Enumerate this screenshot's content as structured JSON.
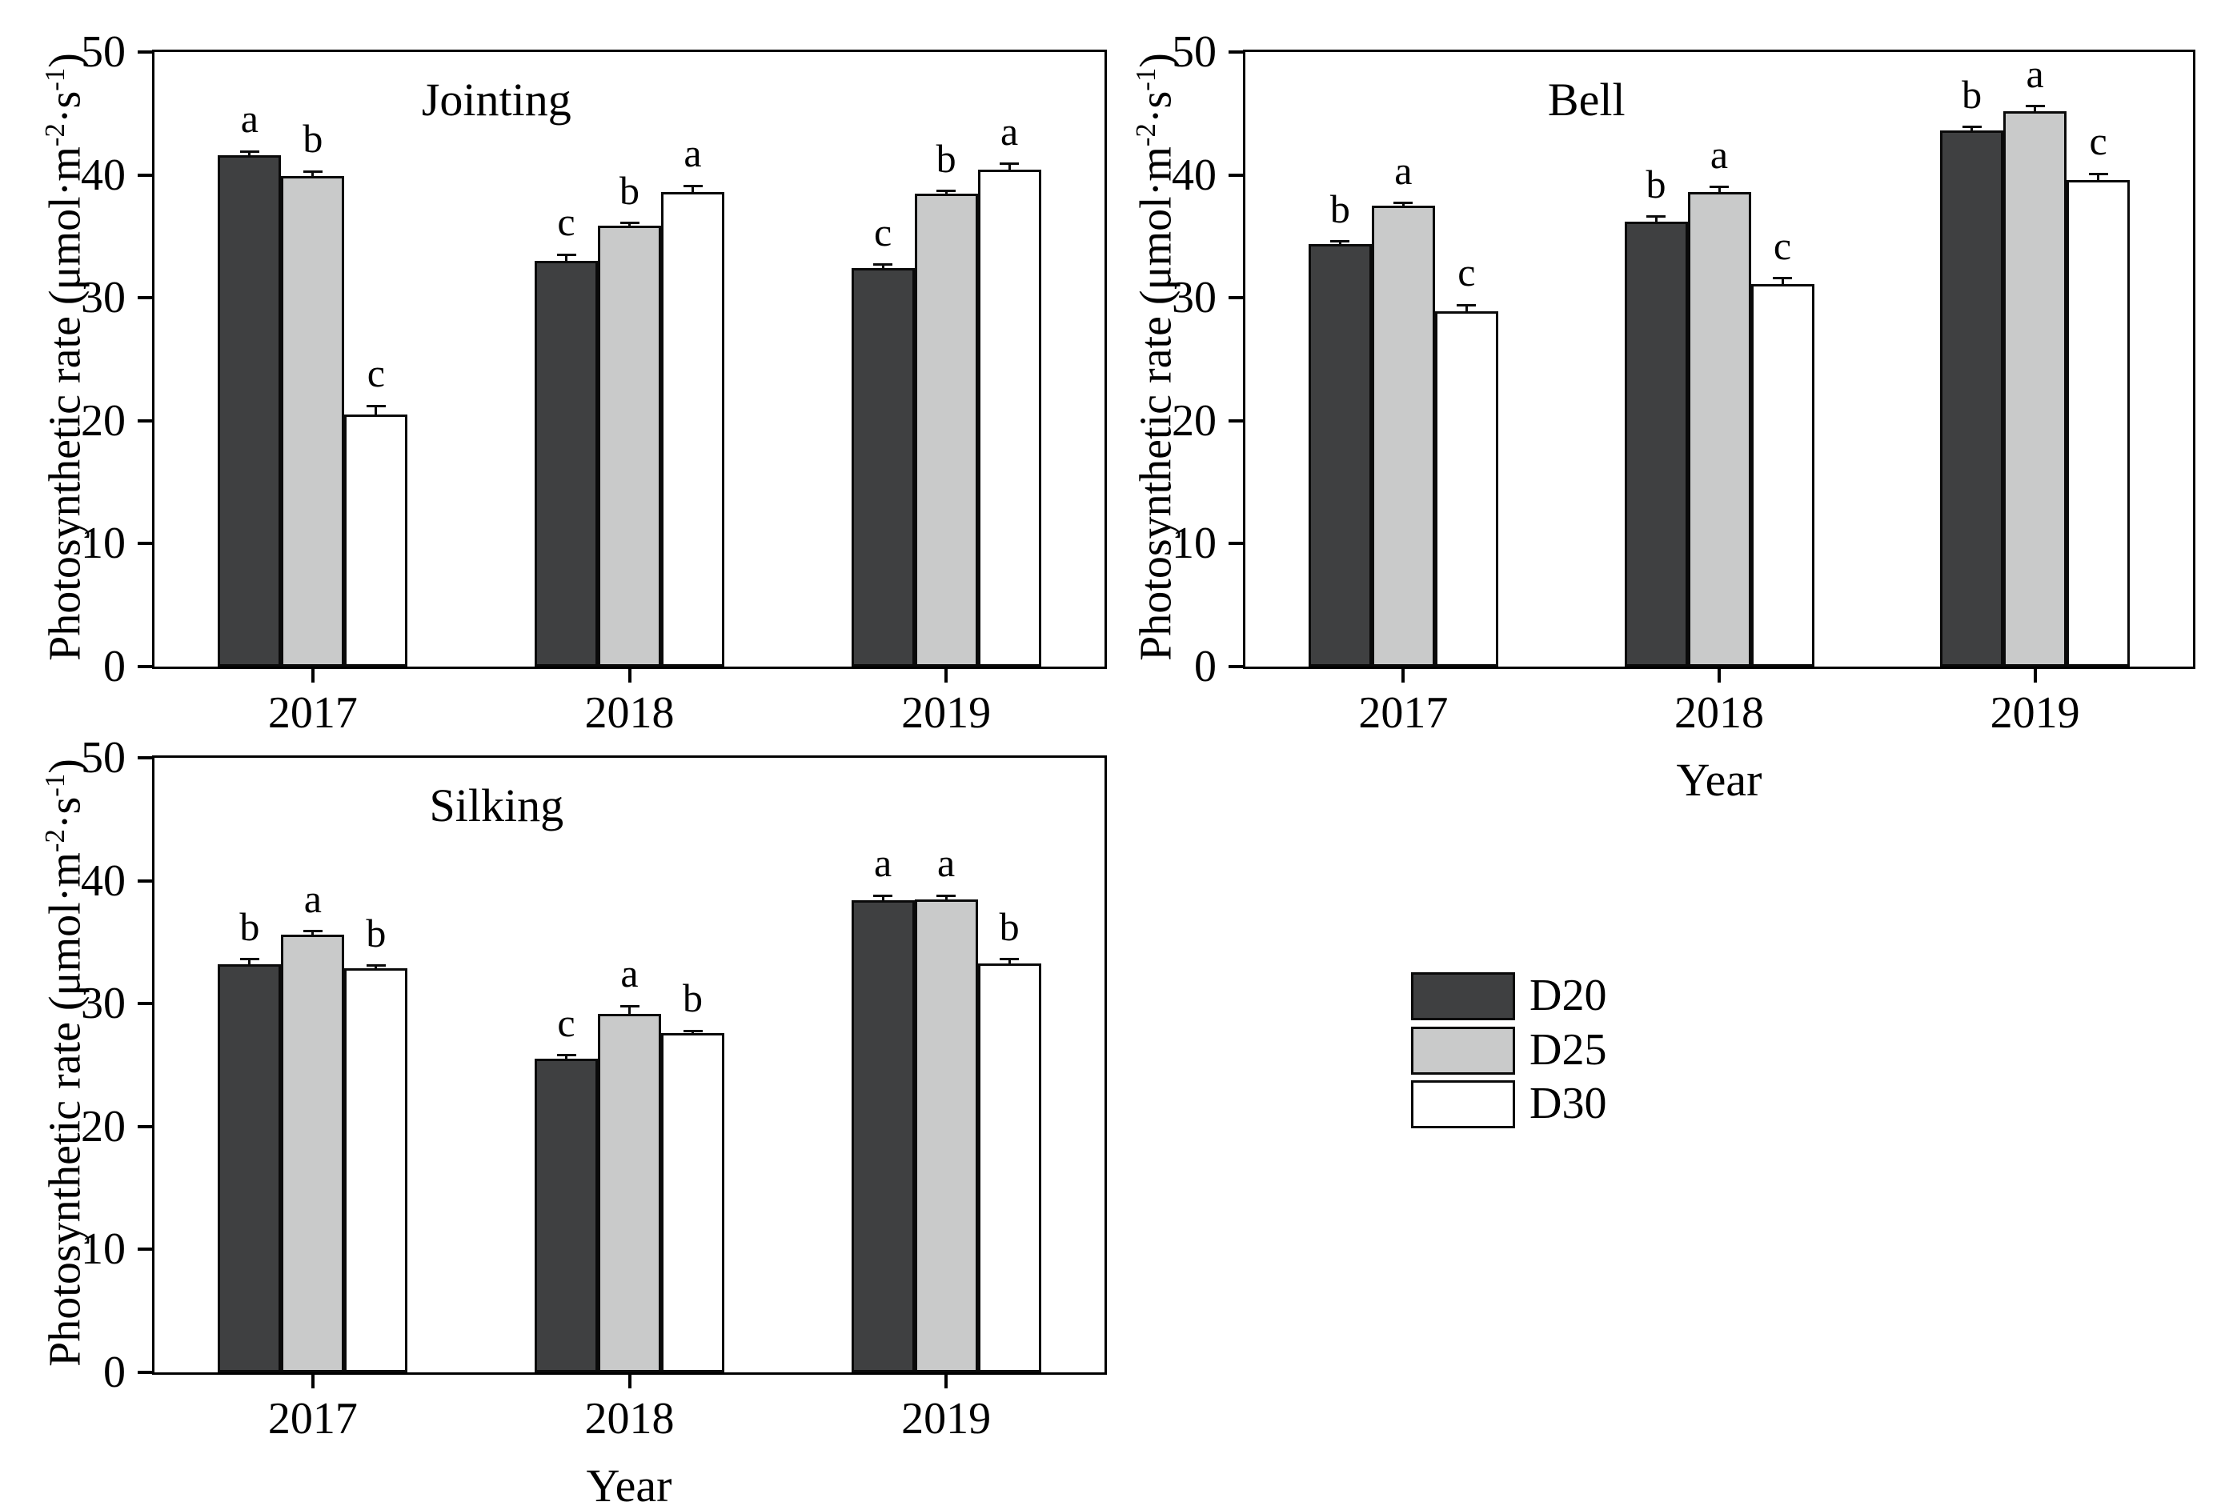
{
  "figure": {
    "background": "#ffffff",
    "axis_color": "#000000",
    "font_color": "#000000"
  },
  "ylabel_parts": {
    "main": "Photosynthetic rate (μmol·m",
    "sup1": "-2",
    "mid": "·s",
    "sup2": "-1",
    "end": ")"
  },
  "legend": {
    "position": "middle-right-of-figure",
    "items": [
      {
        "label": "D20",
        "color": "#3f4041"
      },
      {
        "label": "D25",
        "color": "#c9caca"
      },
      {
        "label": "D30",
        "color": "#ffffff"
      }
    ]
  },
  "chart_data": [
    {
      "type": "bar",
      "panel": "Jointing",
      "title": "Jointing",
      "xlabel": "",
      "ylabel": "Photosynthetic rate (μmol·m-2·s-1)",
      "ylim": [
        0,
        50
      ],
      "yticks": [
        0,
        10,
        20,
        30,
        40,
        50
      ],
      "grid": false,
      "categories": [
        "2017",
        "2018",
        "2019"
      ],
      "series": [
        {
          "name": "D20",
          "color": "#3f4041",
          "values": [
            41.6,
            33.0,
            32.4
          ],
          "errors": [
            0.3,
            0.5,
            0.3
          ],
          "letters": [
            "a",
            "c",
            "c"
          ]
        },
        {
          "name": "D25",
          "color": "#c9caca",
          "values": [
            39.9,
            35.9,
            38.5
          ],
          "errors": [
            0.4,
            0.2,
            0.2
          ],
          "letters": [
            "b",
            "b",
            "b"
          ]
        },
        {
          "name": "D30",
          "color": "#ffffff",
          "values": [
            20.5,
            38.6,
            40.4
          ],
          "errors": [
            0.7,
            0.5,
            0.5
          ],
          "letters": [
            "c",
            "a",
            "a"
          ]
        }
      ]
    },
    {
      "type": "bar",
      "panel": "Bell",
      "title": "Bell",
      "xlabel": "Year",
      "ylabel": "Photosynthetic rate (μmol·m-2·s-1)",
      "ylim": [
        0,
        50
      ],
      "yticks": [
        0,
        10,
        20,
        30,
        40,
        50
      ],
      "grid": false,
      "categories": [
        "2017",
        "2018",
        "2019"
      ],
      "series": [
        {
          "name": "D20",
          "color": "#3f4041",
          "values": [
            34.4,
            36.2,
            43.6
          ],
          "errors": [
            0.2,
            0.4,
            0.3
          ],
          "letters": [
            "b",
            "b",
            "b"
          ]
        },
        {
          "name": "D25",
          "color": "#c9caca",
          "values": [
            37.5,
            38.6,
            45.2
          ],
          "errors": [
            0.2,
            0.4,
            0.4
          ],
          "letters": [
            "a",
            "a",
            "a"
          ]
        },
        {
          "name": "D30",
          "color": "#ffffff",
          "values": [
            28.9,
            31.1,
            39.6
          ],
          "errors": [
            0.5,
            0.5,
            0.5
          ],
          "letters": [
            "c",
            "c",
            "c"
          ]
        }
      ]
    },
    {
      "type": "bar",
      "panel": "Silking",
      "title": "Silking",
      "xlabel": "Year",
      "ylabel": "Photosynthetic rate (μmol·m-2·s-1)",
      "ylim": [
        0,
        50
      ],
      "yticks": [
        0,
        10,
        20,
        30,
        40,
        50
      ],
      "grid": false,
      "categories": [
        "2017",
        "2018",
        "2019"
      ],
      "series": [
        {
          "name": "D20",
          "color": "#3f4041",
          "values": [
            33.2,
            25.5,
            38.4
          ],
          "errors": [
            0.4,
            0.3,
            0.4
          ],
          "letters": [
            "b",
            "c",
            "a"
          ]
        },
        {
          "name": "D25",
          "color": "#c9caca",
          "values": [
            35.6,
            29.2,
            38.5
          ],
          "errors": [
            0.3,
            0.6,
            0.3
          ],
          "letters": [
            "a",
            "a",
            "a"
          ]
        },
        {
          "name": "D30",
          "color": "#ffffff",
          "values": [
            32.9,
            27.6,
            33.3
          ],
          "errors": [
            0.2,
            0.2,
            0.3
          ],
          "letters": [
            "b",
            "b",
            "b"
          ]
        }
      ]
    }
  ]
}
